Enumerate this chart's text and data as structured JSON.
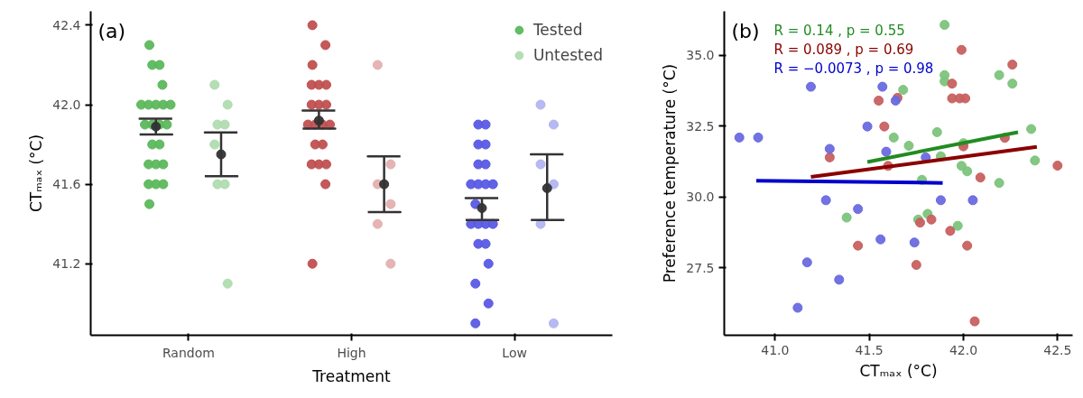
{
  "chart_data": [
    {
      "type": "scatter",
      "title": "(a)",
      "xlabel": "Treatment",
      "ylabel": "CTₘₐₓ (°C)",
      "categories": [
        "Random",
        "High",
        "Low"
      ],
      "ylim": [
        40.84,
        42.47
      ],
      "yticks": [
        {
          "value": 41.2,
          "label": "41.2"
        },
        {
          "value": 41.6,
          "label": "41.6"
        },
        {
          "value": 42.0,
          "label": "42.0"
        },
        {
          "value": 42.4,
          "label": "42.4"
        }
      ],
      "grid": false,
      "legend": "top right",
      "marker": "circle",
      "series": [
        {
          "name": "Tested",
          "x": [
            "Random",
            "Random",
            "Random",
            "Random",
            "Random",
            "Random",
            "Random",
            "Random",
            "Random",
            "Random",
            "Random",
            "Random",
            "Random",
            "Random",
            "Random",
            "Random",
            "Random",
            "Random",
            "Random",
            "Random",
            "Random",
            "Random",
            "Low",
            "Low",
            "Low",
            "Low",
            "Low",
            "Low",
            "Low",
            "Low",
            "Low",
            "Low",
            "Low",
            "Low",
            "Low",
            "Low",
            "Low",
            "Low",
            "Low",
            "Low",
            "Low",
            "Low",
            "Low",
            "High",
            "High",
            "High",
            "High",
            "High",
            "High",
            "High",
            "High",
            "High",
            "High",
            "High",
            "High",
            "High",
            "High",
            "High",
            "High",
            "High",
            "High",
            "High",
            "High"
          ],
          "values": [
            42.3,
            42.2,
            42.2,
            42.1,
            42.0,
            42.0,
            42.0,
            42.0,
            42.0,
            41.9,
            41.9,
            41.9,
            41.9,
            41.8,
            41.8,
            41.7,
            41.7,
            41.7,
            41.6,
            41.6,
            41.6,
            41.5,
            41.9,
            41.9,
            41.8,
            41.8,
            41.7,
            41.7,
            41.6,
            41.6,
            41.6,
            41.6,
            41.5,
            41.4,
            41.4,
            41.4,
            41.4,
            41.3,
            41.3,
            41.2,
            41.1,
            41.0,
            40.9,
            42.4,
            42.3,
            42.2,
            42.1,
            42.1,
            42.1,
            42.0,
            42.0,
            42.0,
            41.9,
            41.9,
            41.9,
            41.9,
            41.8,
            41.8,
            41.7,
            41.7,
            41.7,
            41.6,
            41.2
          ],
          "colors": [
            "#5cb85c",
            "#5cb85c",
            "#5cb85c",
            "#5cb85c",
            "#5cb85c",
            "#5cb85c",
            "#5cb85c",
            "#5cb85c",
            "#5cb85c",
            "#5cb85c",
            "#5cb85c",
            "#5cb85c",
            "#5cb85c",
            "#5cb85c",
            "#5cb85c",
            "#5cb85c",
            "#5cb85c",
            "#5cb85c",
            "#5cb85c",
            "#5cb85c",
            "#5cb85c",
            "#5cb85c",
            "#5a5ae6",
            "#5a5ae6",
            "#5a5ae6",
            "#5a5ae6",
            "#5a5ae6",
            "#5a5ae6",
            "#5a5ae6",
            "#5a5ae6",
            "#5a5ae6",
            "#5a5ae6",
            "#5a5ae6",
            "#5a5ae6",
            "#5a5ae6",
            "#5a5ae6",
            "#5a5ae6",
            "#5a5ae6",
            "#5a5ae6",
            "#5a5ae6",
            "#5a5ae6",
            "#5a5ae6",
            "#5a5ae6",
            "#c05050",
            "#c05050",
            "#c05050",
            "#c05050",
            "#c05050",
            "#c05050",
            "#c05050",
            "#c05050",
            "#c05050",
            "#c05050",
            "#c05050",
            "#c05050",
            "#c05050",
            "#c05050",
            "#c05050",
            "#c05050",
            "#c05050",
            "#c05050",
            "#c05050",
            "#c05050"
          ]
        },
        {
          "name": "Untested",
          "x": [
            "Random",
            "Random",
            "Random",
            "Random",
            "Random",
            "Random",
            "Random",
            "Random",
            "Low",
            "Low",
            "Low",
            "Low",
            "Low",
            "Low",
            "High",
            "High",
            "High",
            "High",
            "High",
            "High"
          ],
          "values": [
            42.1,
            42.0,
            41.9,
            41.9,
            41.8,
            41.6,
            41.6,
            41.1,
            42.0,
            41.9,
            41.7,
            41.6,
            41.4,
            40.9,
            42.2,
            41.7,
            41.6,
            41.5,
            41.4,
            41.2
          ],
          "colors": [
            "#b0dcb0",
            "#b0dcb0",
            "#b0dcb0",
            "#b0dcb0",
            "#b0dcb0",
            "#b0dcb0",
            "#b0dcb0",
            "#b0dcb0",
            "#b4b4f2",
            "#b4b4f2",
            "#b4b4f2",
            "#b4b4f2",
            "#b4b4f2",
            "#b4b4f2",
            "#e4b0b0",
            "#e4b0b0",
            "#e4b0b0",
            "#e4b0b0",
            "#e4b0b0",
            "#e4b0b0"
          ]
        },
        {
          "color": "#333333",
          "x": [
            "Random",
            "High",
            "Low"
          ],
          "values": [
            41.89,
            41.92,
            41.48
          ],
          "errors": [
            [
              41.85,
              41.93
            ],
            [
              41.88,
              41.97
            ],
            [
              41.42,
              41.53
            ]
          ]
        },
        {
          "color": "#333333",
          "x": [
            "Random",
            "High",
            "Low"
          ],
          "values": [
            41.75,
            41.6,
            41.58
          ],
          "errors": [
            [
              41.64,
              41.86
            ],
            [
              41.46,
              41.74
            ],
            [
              41.42,
              41.75
            ]
          ]
        }
      ]
    },
    {
      "type": "scatter",
      "title": "(b)",
      "xlabel": "CTₘₐₓ (°C)",
      "ylabel": "Preference temperature (°C)",
      "xlim": [
        40.73,
        42.58
      ],
      "ylim": [
        25.13,
        36.55
      ],
      "xticks": [
        {
          "value": 41.0,
          "label": "41.0"
        },
        {
          "value": 41.5,
          "label": "41.5"
        },
        {
          "value": 42.0,
          "label": "42.0"
        },
        {
          "value": 42.5,
          "label": "42.5"
        }
      ],
      "yticks": [
        {
          "value": 27.5,
          "label": "27.5"
        },
        {
          "value": 30.0,
          "label": "30.0"
        },
        {
          "value": 32.5,
          "label": "32.5"
        },
        {
          "value": 35.0,
          "label": "35.0"
        }
      ],
      "grid": false,
      "legend": false,
      "marker": "circle",
      "annotations": [
        "R = 0.14 , p = 0.55",
        "R = 0.089 , p = 0.69",
        "R = −0.0073 , p = 0.98"
      ],
      "series": [
        {
          "color": "#7cc47c",
          "x": [
            41.9,
            41.9,
            41.9,
            42.19,
            42.26,
            41.68,
            42.36,
            41.86,
            41.63,
            41.71,
            41.88,
            42.38,
            41.99,
            42.02,
            42.19,
            41.78,
            41.38,
            41.81,
            41.76,
            41.97,
            42.0
          ],
          "values": [
            36.07,
            34.3,
            34.08,
            34.3,
            34.0,
            33.78,
            32.4,
            32.29,
            32.1,
            31.81,
            31.44,
            31.29,
            31.1,
            30.91,
            30.5,
            30.61,
            29.28,
            29.41,
            29.21,
            28.99,
            31.9
          ]
        },
        {
          "color": "#c86060",
          "x": [
            41.99,
            42.26,
            41.94,
            41.94,
            41.98,
            42.01,
            41.65,
            41.55,
            41.58,
            42.22,
            42.0,
            41.29,
            41.6,
            42.09,
            42.5,
            41.77,
            41.83,
            41.93,
            41.44,
            42.02,
            41.75,
            42.06
          ],
          "values": [
            35.19,
            34.67,
            34.0,
            33.48,
            33.48,
            33.48,
            33.5,
            33.4,
            32.49,
            32.09,
            31.79,
            31.4,
            31.1,
            30.69,
            31.11,
            29.1,
            29.21,
            28.81,
            28.29,
            28.29,
            27.61,
            25.62
          ]
        },
        {
          "color": "#6a6ae0",
          "x": [
            40.81,
            40.91,
            41.19,
            41.57,
            41.64,
            41.49,
            41.29,
            41.59,
            41.8,
            41.27,
            41.88,
            42.05,
            41.44,
            41.56,
            41.74,
            41.17,
            41.34,
            41.12
          ],
          "values": [
            32.1,
            32.1,
            33.89,
            33.89,
            33.4,
            32.49,
            31.7,
            31.6,
            31.4,
            29.89,
            29.89,
            29.89,
            29.58,
            28.51,
            28.4,
            27.7,
            27.09,
            26.1
          ]
        },
        {
          "type": "line",
          "marker": "none",
          "color": "#228b22",
          "x": [
            41.49,
            42.29
          ],
          "values": [
            31.24,
            32.29
          ]
        },
        {
          "type": "line",
          "marker": "none",
          "color": "#8b0000",
          "x": [
            41.19,
            42.39
          ],
          "values": [
            30.71,
            31.77
          ]
        },
        {
          "type": "line",
          "marker": "none",
          "color": "#0000cd",
          "x": [
            40.9,
            41.89
          ],
          "values": [
            30.58,
            30.5
          ]
        }
      ]
    }
  ]
}
